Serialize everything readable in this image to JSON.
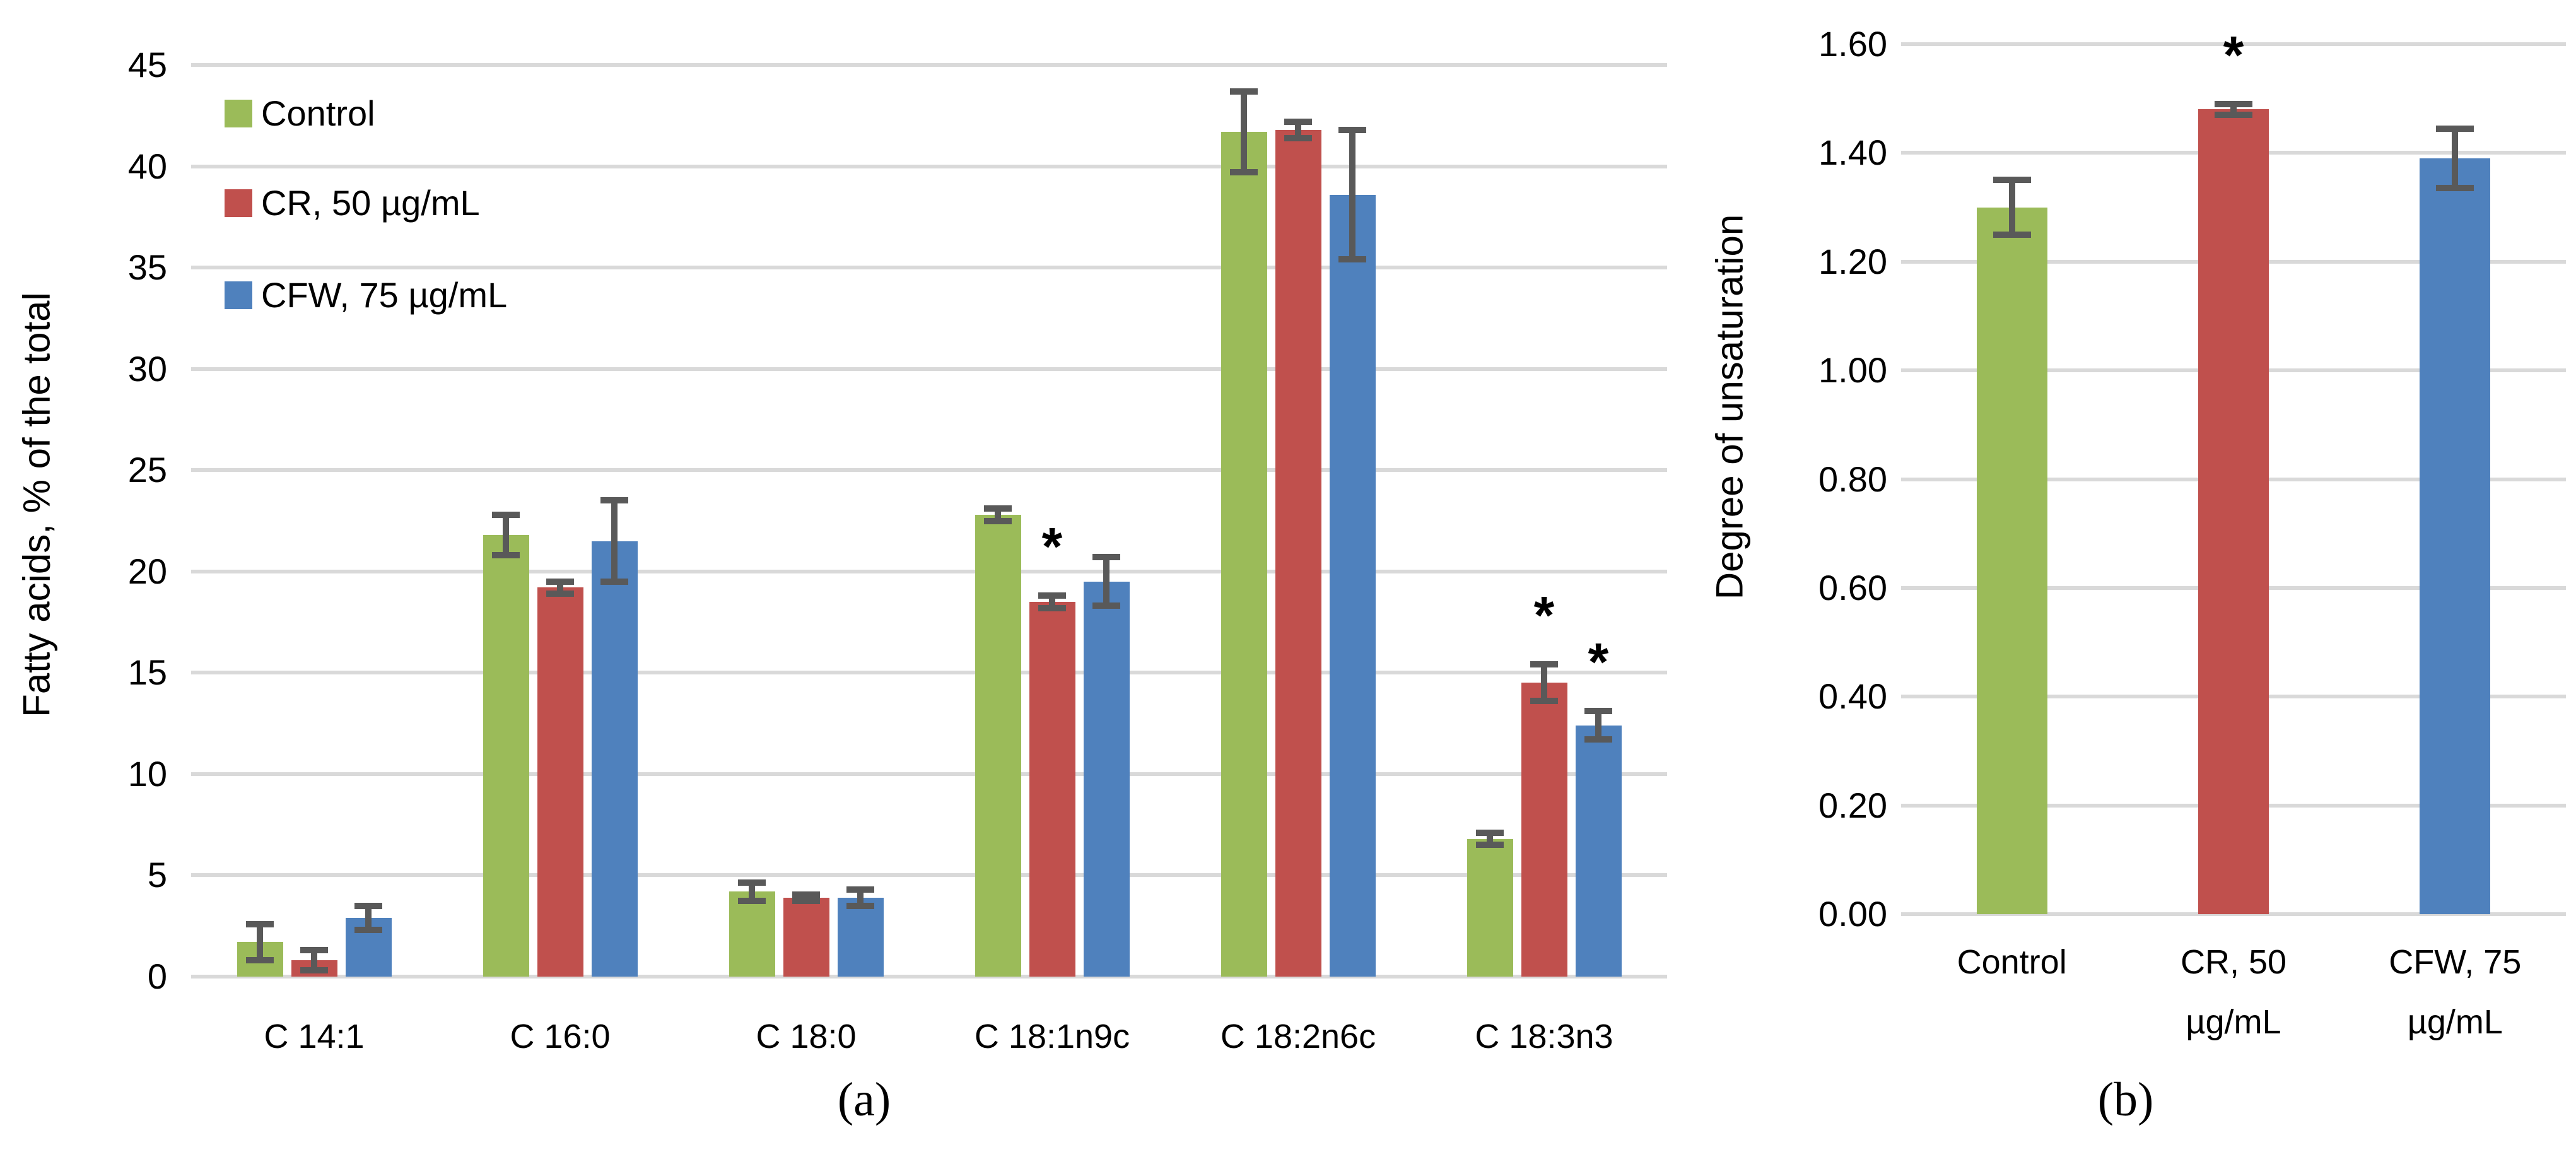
{
  "figure": {
    "background": "#FFFFFF",
    "text_color": "#000000",
    "gridline_color": "#D9D9D9",
    "error_bar_color": "#595959",
    "captions": {
      "a": "(a)",
      "b": "(b)"
    }
  },
  "legend": {
    "position": "upper-left-inside",
    "items": [
      {
        "label": "Control",
        "color": "#9BBB59"
      },
      {
        "label": "CR, 50 µg/mL",
        "color": "#C0504D"
      },
      {
        "label": "CFW, 75 µg/mL",
        "color": "#4F81BD"
      }
    ]
  },
  "chart_data": [
    {
      "id": "a",
      "type": "bar",
      "title": "",
      "xlabel": "",
      "ylabel": "Fatty acids, % of the total",
      "ylim": [
        0,
        45
      ],
      "ytick_step": 5,
      "yticks": [
        "0",
        "5",
        "10",
        "15",
        "20",
        "25",
        "30",
        "35",
        "40",
        "45"
      ],
      "grid": true,
      "legend_position": "upper left inside plot",
      "caption": "(a)",
      "categories": [
        "C 14:1",
        "C 16:0",
        "C 18:0",
        "C 18:1n9c",
        "C 18:2n6c",
        "C 18:3n3"
      ],
      "series": [
        {
          "name": "Control",
          "color": "#9BBB59",
          "values": [
            1.7,
            21.8,
            4.2,
            22.8,
            41.7,
            6.8
          ],
          "errors": [
            0.9,
            1.0,
            0.45,
            0.3,
            2.0,
            0.3
          ],
          "significant": [
            false,
            false,
            false,
            false,
            false,
            false
          ]
        },
        {
          "name": "CR, 50 µg/mL",
          "color": "#C0504D",
          "values": [
            0.8,
            19.2,
            3.9,
            18.5,
            41.8,
            14.5
          ],
          "errors": [
            0.5,
            0.3,
            0.15,
            0.3,
            0.4,
            0.9
          ],
          "significant": [
            false,
            false,
            false,
            true,
            false,
            true
          ]
        },
        {
          "name": "CFW, 75 µg/mL",
          "color": "#4F81BD",
          "values": [
            2.9,
            21.5,
            3.9,
            19.5,
            38.6,
            12.4
          ],
          "errors": [
            0.6,
            2.0,
            0.4,
            1.2,
            3.2,
            0.7
          ],
          "significant": [
            false,
            false,
            false,
            false,
            false,
            true
          ]
        }
      ]
    },
    {
      "id": "b",
      "type": "bar",
      "title": "",
      "xlabel": "",
      "ylabel": "Degree of unsaturation",
      "ylim": [
        0,
        1.6
      ],
      "ytick_step": 0.2,
      "yticks": [
        "0.00",
        "0.20",
        "0.40",
        "0.60",
        "0.80",
        "1.00",
        "1.20",
        "1.40",
        "1.60"
      ],
      "grid": true,
      "caption": "(b)",
      "categories": [
        "Control",
        "CR, 50\nµg/mL",
        "CFW, 75\nµg/mL"
      ],
      "series": [
        {
          "name": "Degree of unsaturation",
          "colors": [
            "#9BBB59",
            "#C0504D",
            "#4F81BD"
          ],
          "values": [
            1.3,
            1.48,
            1.39
          ],
          "errors": [
            0.05,
            0.01,
            0.055
          ],
          "significant": [
            false,
            true,
            false
          ]
        }
      ]
    }
  ]
}
